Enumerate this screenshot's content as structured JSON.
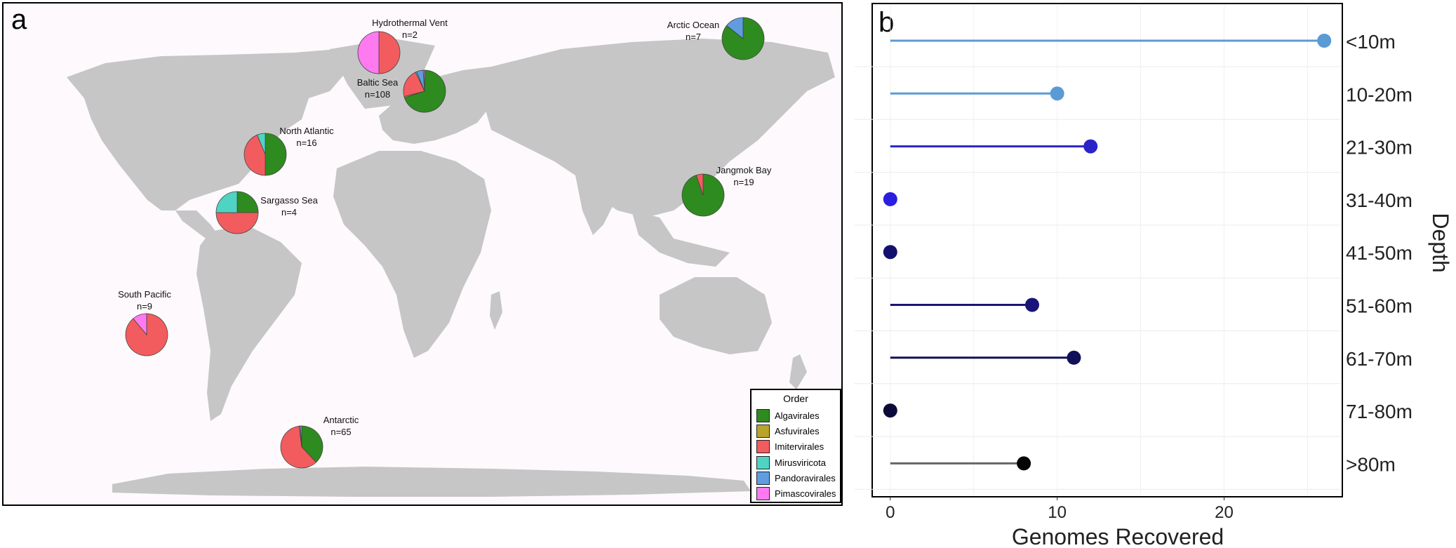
{
  "panels": {
    "a": {
      "label": "a"
    },
    "b": {
      "label": "b"
    }
  },
  "legend": {
    "title": "Order",
    "items": [
      {
        "name": "Algavirales",
        "color": "#2e8b1f"
      },
      {
        "name": "Asfuvirales",
        "color": "#b8a42a"
      },
      {
        "name": "Imitervirales",
        "color": "#f25c5e"
      },
      {
        "name": "Mirusviricota",
        "color": "#4fd4c4"
      },
      {
        "name": "Pandoravirales",
        "color": "#5f9de0"
      },
      {
        "name": "Pimascovirales",
        "color": "#ff7af0"
      }
    ]
  },
  "chart_data": [
    {
      "type": "pie",
      "panel": "a",
      "map": "world map",
      "order_names": [
        "Algavirales",
        "Asfuvirales",
        "Imitervirales",
        "Mirusviricota",
        "Pandoravirales",
        "Pimascovirales"
      ],
      "sites": [
        {
          "label": "Hydrothermal Vent",
          "count": "n=2",
          "fractions": [
            0,
            0,
            0.5,
            0,
            0,
            0.5
          ]
        },
        {
          "label": "Arctic Ocean",
          "count": "n=7",
          "fractions": [
            0.857,
            0,
            0,
            0,
            0.143,
            0
          ]
        },
        {
          "label": "Baltic Sea",
          "count": "n=108",
          "fractions": [
            0.7,
            0.01,
            0.22,
            0.01,
            0.05,
            0.01
          ]
        },
        {
          "label": "North Atlantic",
          "count": "n=16",
          "fractions": [
            0.5,
            0,
            0.4375,
            0.0625,
            0,
            0
          ]
        },
        {
          "label": "Sargasso Sea",
          "count": "n=4",
          "fractions": [
            0.25,
            0,
            0.5,
            0.25,
            0,
            0
          ]
        },
        {
          "label": "Jangmok Bay",
          "count": "n=19",
          "fractions": [
            0.947,
            0,
            0.053,
            0,
            0,
            0
          ]
        },
        {
          "label": "South Pacific",
          "count": "n=9",
          "fractions": [
            0,
            0,
            0.889,
            0,
            0,
            0.111
          ]
        },
        {
          "label": "Antarctic",
          "count": "n=65",
          "fractions": [
            0.38,
            0,
            0.6,
            0,
            0.01,
            0.01
          ]
        }
      ]
    },
    {
      "type": "lollipop",
      "panel": "b",
      "xlabel": "Genomes Recovered",
      "ylabel": "Depth",
      "xlim": [
        -1,
        27
      ],
      "xticks": [
        0,
        10,
        20
      ],
      "grid": true,
      "categories": [
        "<10m",
        "10-20m",
        "21-30m",
        "31-40m",
        "41-50m",
        "51-60m",
        "61-70m",
        "71-80m",
        ">80m"
      ],
      "values": [
        26,
        10,
        12,
        0,
        0,
        8.5,
        11,
        0,
        8
      ],
      "colors": [
        "#5b9bd5",
        "#5b9bd5",
        "#2b24c8",
        "#2a1ee0",
        "#14116e",
        "#1a1478",
        "#121058",
        "#0c0a3a",
        "#050505"
      ],
      "line_colors": [
        "#5b9bd5",
        "#5b9bd5",
        "#2b24c8",
        "#2a1ee0",
        "#14116e",
        "#1a1478",
        "#121058",
        "#0c0a3a",
        "#666666"
      ]
    }
  ]
}
